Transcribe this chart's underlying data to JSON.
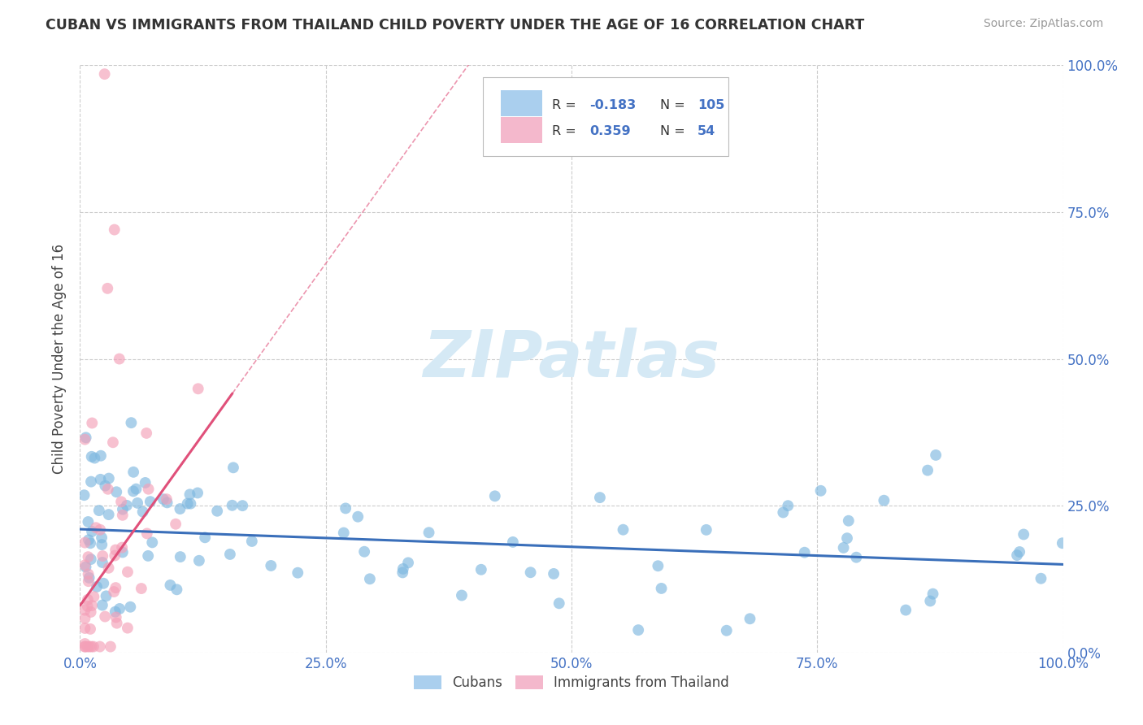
{
  "title": "CUBAN VS IMMIGRANTS FROM THAILAND CHILD POVERTY UNDER THE AGE OF 16 CORRELATION CHART",
  "source": "Source: ZipAtlas.com",
  "ylabel": "Child Poverty Under the Age of 16",
  "xlim": [
    0.0,
    1.0
  ],
  "ylim": [
    0.0,
    1.0
  ],
  "xtick_vals": [
    0.0,
    0.25,
    0.5,
    0.75,
    1.0
  ],
  "xtick_labels": [
    "0.0%",
    "25.0%",
    "50.0%",
    "75.0%",
    "100.0%"
  ],
  "ytick_vals": [
    0.0,
    0.25,
    0.5,
    0.75,
    1.0
  ],
  "ytick_labels": [
    "0.0%",
    "25.0%",
    "50.0%",
    "75.0%",
    "100.0%"
  ],
  "cubans_R": -0.183,
  "cubans_N": 105,
  "thailand_R": 0.359,
  "thailand_N": 54,
  "blue_scatter_color": "#7eb8e0",
  "pink_scatter_color": "#f4a0b8",
  "blue_line_color": "#3a6fba",
  "pink_line_color": "#e0507a",
  "legend_blue_color": "#aacfee",
  "legend_pink_color": "#f4b8cc",
  "watermark_color": "#d5e9f5",
  "background_color": "#ffffff",
  "grid_color": "#cccccc",
  "tick_color": "#4472c4",
  "title_color": "#333333",
  "source_color": "#999999",
  "label_color": "#444444"
}
